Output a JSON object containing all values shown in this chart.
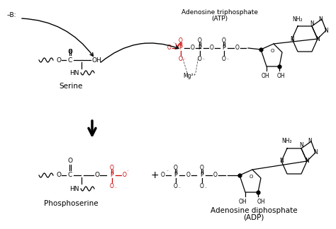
{
  "bg_color": "#ffffff",
  "text_color": "#000000",
  "red_color": "#cc0000",
  "fig_width": 4.74,
  "fig_height": 3.24,
  "dpi": 100,
  "labels": {
    "base": "–B:",
    "serine": "Serine",
    "atp_line1": "Adenosine triphosphate",
    "atp_line2": "(ATP)",
    "mg": "Mg²⁺",
    "phosphoserine": "Phosphoserine",
    "adp_line1": "Adenosine diphosphate",
    "adp_line2": "(ADP)",
    "nh2": "NH₂",
    "plus": "+"
  }
}
